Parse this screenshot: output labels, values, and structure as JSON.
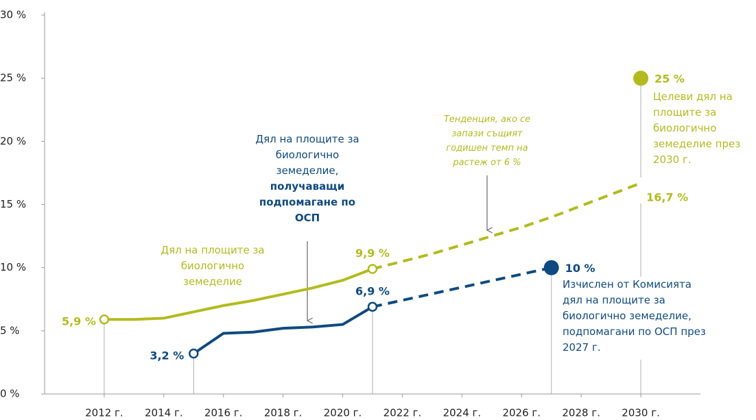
{
  "chart_data": {
    "type": "line",
    "xlim": [
      2010,
      2032
    ],
    "xticks": [
      {
        "value": 2012,
        "label": "2012 г."
      },
      {
        "value": 2014,
        "label": "2014 г."
      },
      {
        "value": 2016,
        "label": "2016 г."
      },
      {
        "value": 2018,
        "label": "2018 г."
      },
      {
        "value": 2020,
        "label": "2020 г."
      },
      {
        "value": 2022,
        "label": "2022 г."
      },
      {
        "value": 2024,
        "label": "2024 г."
      },
      {
        "value": 2026,
        "label": "2026 г."
      },
      {
        "value": 2028,
        "label": "2028 г."
      },
      {
        "value": 2030,
        "label": "2030 г."
      }
    ],
    "ylim": [
      0,
      30
    ],
    "yticks": [
      {
        "value": 0,
        "label": "0 %"
      },
      {
        "value": 5,
        "label": "5 %"
      },
      {
        "value": 10,
        "label": "10 %"
      },
      {
        "value": 15,
        "label": "15 %"
      },
      {
        "value": 20,
        "label": "20 %"
      },
      {
        "value": 25,
        "label": "25 %"
      },
      {
        "value": 30,
        "label": "30 %"
      }
    ],
    "series": [
      {
        "name": "Дял на площите за биологично земеделие",
        "color": "#b2bb1e",
        "style": "solid",
        "x": [
          2012,
          2013,
          2014,
          2015,
          2016,
          2017,
          2018,
          2019,
          2020,
          2021
        ],
        "values": [
          5.9,
          5.9,
          6.0,
          6.5,
          7.0,
          7.4,
          7.9,
          8.4,
          9.0,
          9.9
        ],
        "value_labels": [
          "5,9 %",
          null,
          null,
          null,
          null,
          null,
          null,
          null,
          null,
          "9,9 %"
        ]
      },
      {
        "name": "Тенденция, ако се запази същият годишен темп на растеж от 6 %",
        "color": "#b2bb1e",
        "style": "dashed",
        "x": [
          2021,
          2022,
          2023,
          2024,
          2025,
          2026,
          2027,
          2028,
          2029,
          2030
        ],
        "values": [
          9.9,
          10.5,
          11.1,
          11.8,
          12.5,
          13.2,
          14.0,
          14.9,
          15.8,
          16.7
        ],
        "value_labels": [
          null,
          null,
          null,
          null,
          null,
          null,
          null,
          null,
          null,
          "16,7 %"
        ]
      },
      {
        "name": "Дял на площите за биологично земеделие,",
        "name_emphasis": "получаващи подпомагане по ОСП",
        "color": "#0e4a80",
        "style": "solid",
        "x": [
          2015,
          2016,
          2017,
          2018,
          2019,
          2020,
          2021
        ],
        "values": [
          3.2,
          4.8,
          4.9,
          5.2,
          5.3,
          5.5,
          6.9
        ],
        "value_labels": [
          "3,2 %",
          null,
          null,
          null,
          null,
          null,
          "6,9 %"
        ]
      },
      {
        "color": "#0e4a80",
        "style": "dashed",
        "x": [
          2021,
          2027
        ],
        "values": [
          6.9,
          10.0
        ]
      },
      {
        "name": "Целеви дял на площите за биологично земеделие през 2030 г.",
        "color": "#b2bb1e",
        "style": "point",
        "x": [
          2030
        ],
        "values": [
          25
        ],
        "value_labels": [
          "25 %"
        ]
      },
      {
        "name": "Изчислен от Комисията дял на площите за биологично земеделие, подпомагани по ОСП през 2027 г.",
        "color": "#0e4a80",
        "style": "point",
        "x": [
          2027
        ],
        "values": [
          10
        ],
        "value_labels": [
          "10 %"
        ]
      }
    ]
  }
}
